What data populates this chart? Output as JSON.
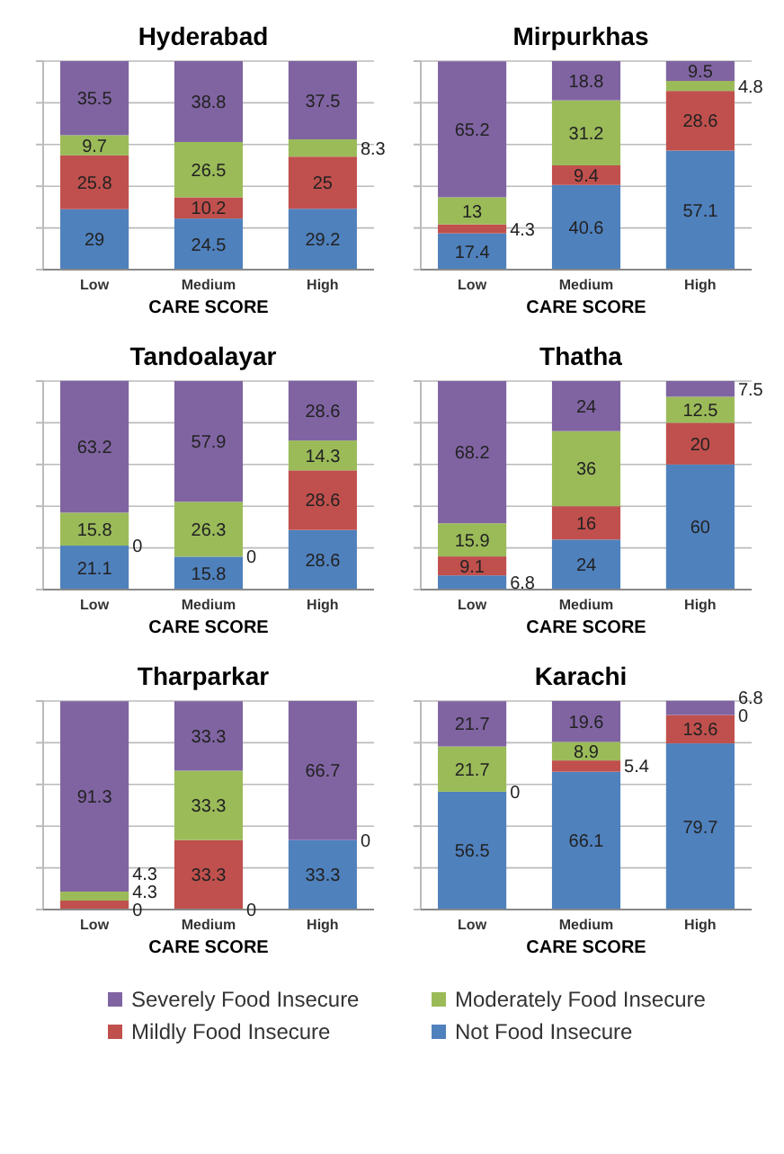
{
  "chart_data": [
    {
      "type": "bar",
      "title": "Hyderabad",
      "xlabel": "CARE SCORE",
      "categories": [
        "Low",
        "Medium",
        "High"
      ],
      "stacked": true,
      "data_labels": true,
      "grid": "y",
      "tick_labels": "x",
      "ylim": [
        0,
        100
      ],
      "yticks": [
        {
          "value": 0,
          "label": null
        },
        {
          "value": 20,
          "label": null
        },
        {
          "value": 40,
          "label": null
        },
        {
          "value": 60,
          "label": null
        },
        {
          "value": 80,
          "label": null
        },
        {
          "value": 100,
          "label": null
        }
      ],
      "series": [
        {
          "color": "#4f81bd",
          "values": [
            29,
            24.5,
            29.2
          ]
        },
        {
          "color": "#c0504d",
          "values": [
            25.8,
            10.2,
            25
          ]
        },
        {
          "color": "#9bbb59",
          "values": [
            9.7,
            26.5,
            8.3
          ]
        },
        {
          "color": "#8064a2",
          "values": [
            35.5,
            38.8,
            37.5
          ]
        }
      ]
    },
    {
      "type": "bar",
      "title": "Mirpurkhas",
      "xlabel": "CARE SCORE",
      "categories": [
        "Low",
        "Medium",
        "High"
      ],
      "stacked": true,
      "data_labels": true,
      "grid": "y",
      "tick_labels": "x",
      "ylim": [
        0,
        100
      ],
      "yticks": [
        {
          "value": 0,
          "label": null
        },
        {
          "value": 20,
          "label": null
        },
        {
          "value": 40,
          "label": null
        },
        {
          "value": 60,
          "label": null
        },
        {
          "value": 80,
          "label": null
        },
        {
          "value": 100,
          "label": null
        }
      ],
      "series": [
        {
          "color": "#4f81bd",
          "values": [
            17.4,
            40.6,
            57.1
          ]
        },
        {
          "color": "#c0504d",
          "values": [
            4.3,
            9.4,
            28.6
          ]
        },
        {
          "color": "#9bbb59",
          "values": [
            13,
            31.2,
            4.8
          ]
        },
        {
          "color": "#8064a2",
          "values": [
            65.2,
            18.8,
            9.5
          ]
        }
      ]
    },
    {
      "type": "bar",
      "title": "Tandoalayar",
      "xlabel": "CARE SCORE",
      "annotations": [
        {
          "text": "0",
          "x": "Low",
          "y": 21.1
        },
        {
          "text": "0",
          "x": "Medium",
          "y": 15.8
        }
      ],
      "categories": [
        "Low",
        "Medium",
        "High"
      ],
      "stacked": true,
      "data_labels": true,
      "grid": "y",
      "tick_labels": "x",
      "ylim": [
        0,
        100
      ],
      "yticks": [
        {
          "value": 0,
          "label": null
        },
        {
          "value": 20,
          "label": null
        },
        {
          "value": 40,
          "label": null
        },
        {
          "value": 60,
          "label": null
        },
        {
          "value": 80,
          "label": null
        },
        {
          "value": 100,
          "label": null
        }
      ],
      "series": [
        {
          "color": "#4f81bd",
          "values": [
            21.1,
            15.8,
            28.6
          ]
        },
        {
          "color": "#c0504d",
          "values": [
            null,
            null,
            28.6
          ]
        },
        {
          "color": "#9bbb59",
          "values": [
            15.8,
            26.3,
            14.3
          ]
        },
        {
          "color": "#8064a2",
          "values": [
            63.2,
            57.9,
            28.6
          ]
        }
      ]
    },
    {
      "type": "bar",
      "title": "Thatha",
      "xlabel": "CARE SCORE",
      "categories": [
        "Low",
        "Medium",
        "High"
      ],
      "stacked": true,
      "data_labels": true,
      "grid": "y",
      "tick_labels": "x",
      "ylim": [
        0,
        100
      ],
      "yticks": [
        {
          "value": 0,
          "label": null
        },
        {
          "value": 20,
          "label": null
        },
        {
          "value": 40,
          "label": null
        },
        {
          "value": 60,
          "label": null
        },
        {
          "value": 80,
          "label": null
        },
        {
          "value": 100,
          "label": null
        }
      ],
      "series": [
        {
          "color": "#4f81bd",
          "values": [
            6.8,
            24,
            60
          ]
        },
        {
          "color": "#c0504d",
          "values": [
            9.1,
            16,
            20
          ]
        },
        {
          "color": "#9bbb59",
          "values": [
            15.9,
            36,
            12.5
          ]
        },
        {
          "color": "#8064a2",
          "values": [
            68.2,
            24,
            7.5
          ]
        }
      ]
    },
    {
      "type": "bar",
      "title": "Tharparkar",
      "xlabel": "CARE SCORE",
      "annotations": [
        {
          "text": "0",
          "x": "Low",
          "y": 0
        },
        {
          "text": "0",
          "x": "Medium",
          "y": 0
        },
        {
          "text": "0",
          "x": "High",
          "y": 33.3
        }
      ],
      "categories": [
        "Low",
        "Medium",
        "High"
      ],
      "stacked": true,
      "data_labels": true,
      "grid": "y",
      "tick_labels": "x",
      "ylim": [
        0,
        100
      ],
      "yticks": [
        {
          "value": 0,
          "label": null
        },
        {
          "value": 20,
          "label": null
        },
        {
          "value": 40,
          "label": null
        },
        {
          "value": 60,
          "label": null
        },
        {
          "value": 80,
          "label": null
        },
        {
          "value": 100,
          "label": null
        }
      ],
      "series": [
        {
          "color": "#4f81bd",
          "values": [
            null,
            null,
            33.3
          ]
        },
        {
          "color": "#c0504d",
          "values": [
            4.3,
            33.3,
            null
          ]
        },
        {
          "color": "#9bbb59",
          "values": [
            4.3,
            33.3,
            null
          ]
        },
        {
          "color": "#8064a2",
          "values": [
            91.3,
            33.3,
            66.7
          ]
        }
      ]
    },
    {
      "type": "bar",
      "title": "Karachi",
      "xlabel": "CARE SCORE",
      "annotations": [
        {
          "text": "0",
          "x": "Low",
          "y": 56.5
        },
        {
          "text": "0",
          "x": "High",
          "y": 93.3
        }
      ],
      "categories": [
        "Low",
        "Medium",
        "High"
      ],
      "stacked": true,
      "data_labels": true,
      "grid": "y",
      "tick_labels": "x",
      "legend": "bottom",
      "ylim": [
        0,
        100
      ],
      "yticks": [
        {
          "value": 0,
          "label": null
        },
        {
          "value": 20,
          "label": null
        },
        {
          "value": 40,
          "label": null
        },
        {
          "value": 60,
          "label": null
        },
        {
          "value": 80,
          "label": null
        },
        {
          "value": 100,
          "label": null
        }
      ],
      "series": [
        {
          "name": "Not Food Insecure",
          "color": "#4f81bd",
          "values": [
            56.5,
            66.1,
            79.7
          ]
        },
        {
          "name": "Mildly Food Insecure",
          "color": "#c0504d",
          "values": [
            null,
            5.4,
            13.6
          ]
        },
        {
          "name": "Moderately Food Insecure",
          "color": "#9bbb59",
          "values": [
            21.7,
            8.9,
            null
          ]
        },
        {
          "name": "Severely Food Insecure",
          "color": "#8064a2",
          "values": [
            21.7,
            19.6,
            6.8
          ]
        }
      ]
    }
  ]
}
